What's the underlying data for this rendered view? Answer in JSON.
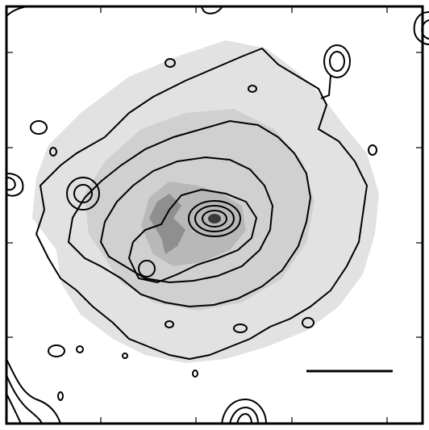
{
  "figure": {
    "kind": "x-ray contour map overlaid on greyscale image",
    "colors": {
      "background": "#ffffff",
      "frame": "#000000",
      "contour": "#000000",
      "grey_light": "#d9d9d9",
      "grey_mid": "#bdbdbd",
      "grey_dark": "#8c8c8c",
      "grey_core": "#3a3a3a"
    },
    "scale_bar_present": true,
    "tick_marks": true
  }
}
